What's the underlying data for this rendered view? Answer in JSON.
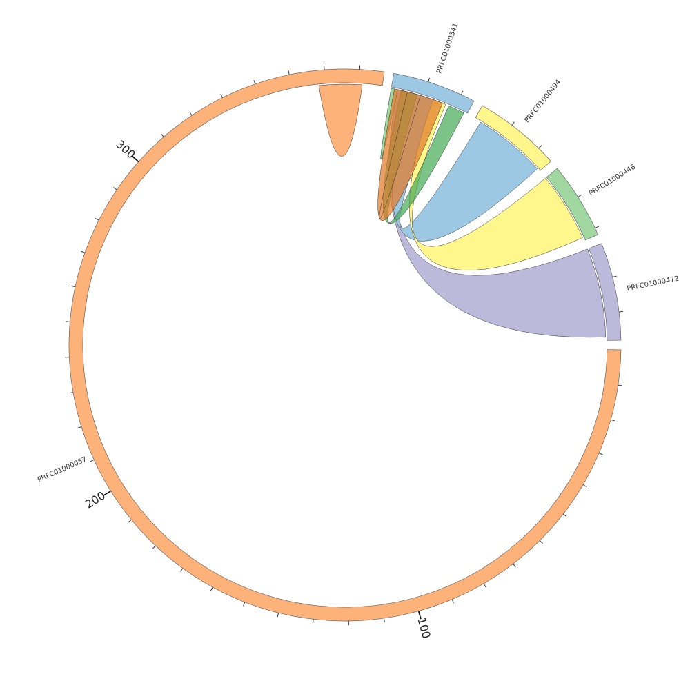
{
  "chart_data": {
    "type": "chord",
    "segments": [
      {
        "name": "PRFC01000057",
        "length": 377,
        "color": "#FDB27A"
      },
      {
        "name": "PRFC01000541",
        "length": 24,
        "color": "#9DC8E3"
      },
      {
        "name": "PRFC01000494",
        "length": 25,
        "color": "#FFF68C"
      },
      {
        "name": "PRFC01000446",
        "length": 22,
        "color": "#A1D8A1"
      },
      {
        "name": "PRFC01000472",
        "length": 28,
        "color": "#BDB9DA"
      }
    ],
    "major_ticks": [
      100,
      200,
      300
    ],
    "minor_tick_interval": 10,
    "links": [
      {
        "from": "PRFC01000057",
        "from_range": [
          358,
          371
        ],
        "to": "PRFC01000057",
        "to_range": [
          358,
          371
        ],
        "color": "#FDB27A",
        "opacity": 1.0
      },
      {
        "from": "PRFC01000541",
        "from_range": [
          0,
          2
        ],
        "to": "PRFC01000541",
        "to_range": [
          0,
          2
        ],
        "color": "#A1D8A1",
        "opacity": 1.0
      },
      {
        "from": "PRFC01000541",
        "from_range": [
          2,
          5
        ],
        "to": "PRFC01000472",
        "to_range": [
          0,
          27
        ],
        "color": "#BDB9DA",
        "opacity": 1.0
      },
      {
        "from": "PRFC01000541",
        "from_range": [
          5,
          14
        ],
        "to": "PRFC01000494",
        "to_range": [
          2,
          24
        ],
        "color": "#9DC8E3",
        "opacity": 1.0
      },
      {
        "from": "PRFC01000541",
        "from_range": [
          13,
          17
        ],
        "to": "PRFC01000446",
        "to_range": [
          0,
          21
        ],
        "color": "#FFF68C",
        "opacity": 1.0
      },
      {
        "from": "PRFC01000541",
        "from_range": [
          18,
          23
        ],
        "to": "PRFC01000541",
        "to_range": [
          3,
          8
        ],
        "color": "#44AA55",
        "opacity": 0.7
      },
      {
        "from": "PRFC01000541",
        "from_range": [
          5,
          16
        ],
        "to": "PRFC01000541",
        "to_range": [
          1,
          9
        ],
        "color": "#E07B2A",
        "opacity": 0.72
      }
    ]
  }
}
